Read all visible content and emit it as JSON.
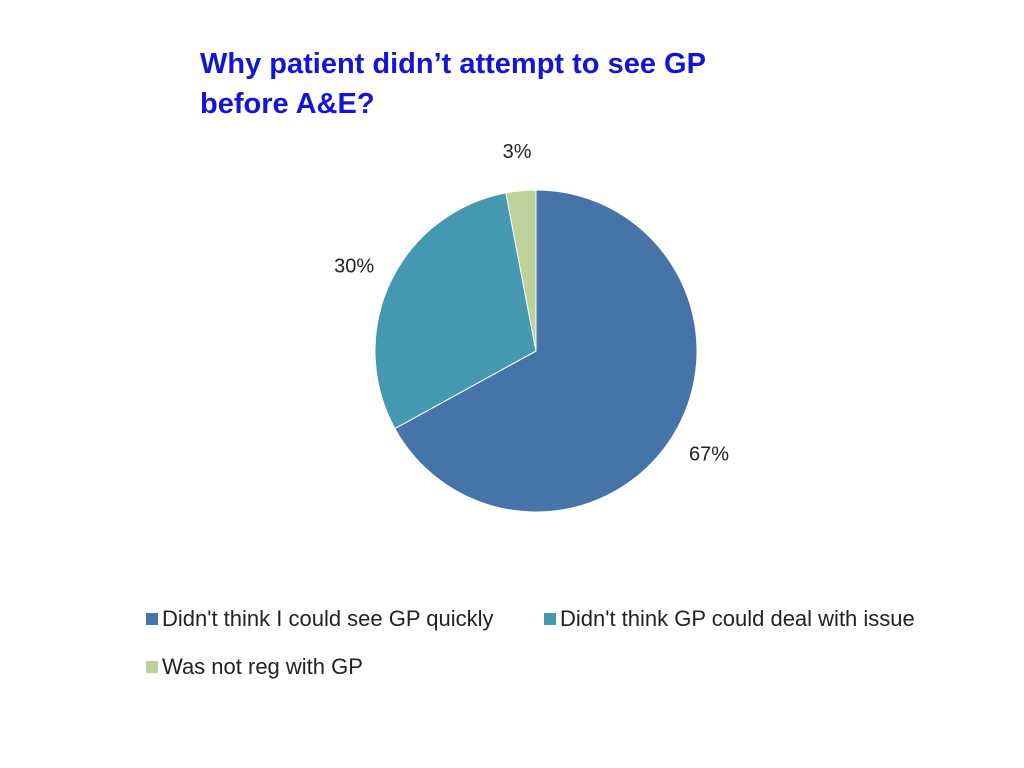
{
  "slide": {
    "title_line1": "Why patient didn’t attempt to see GP",
    "title_line2": "before A&E?",
    "title_color": "#1414d8"
  },
  "chart_data": {
    "type": "pie",
    "title": "Why patient didn’t attempt to see GP before A&E?",
    "slices": [
      {
        "name": "Didn't think I could see GP quickly",
        "value": 67,
        "label": "67%",
        "color": "#4673a8"
      },
      {
        "name": "Didn't think GP could deal with issue",
        "value": 30,
        "label": "30%",
        "color": "#4499b0"
      },
      {
        "name": "Was not reg with GP",
        "value": 3,
        "label": "3%",
        "color": "#bcd29a"
      }
    ],
    "start_angle": "12 o'clock",
    "direction": "clockwise",
    "legend_position": "bottom"
  }
}
